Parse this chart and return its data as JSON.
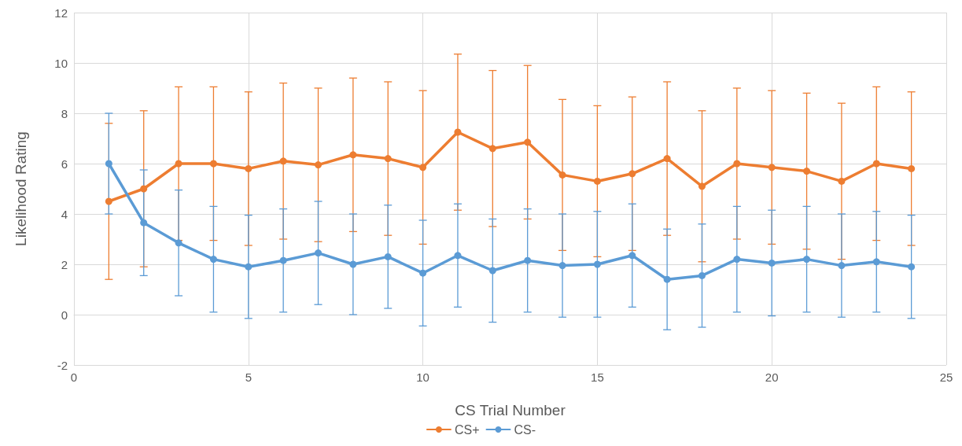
{
  "chart_data": {
    "type": "line",
    "xlabel": "CS Trial Number",
    "ylabel": "Likelihood Rating",
    "x": [
      1,
      2,
      3,
      4,
      5,
      6,
      7,
      8,
      9,
      10,
      11,
      12,
      13,
      14,
      15,
      16,
      17,
      18,
      19,
      20,
      21,
      22,
      23,
      24
    ],
    "xlim": [
      0,
      25
    ],
    "xticks": [
      0,
      5,
      10,
      15,
      20,
      25
    ],
    "ylim": [
      -2,
      12
    ],
    "yticks": [
      -2,
      0,
      2,
      4,
      6,
      8,
      10,
      12
    ],
    "grid": true,
    "legend": "bottom",
    "marker": "circle",
    "line_style": "solid",
    "series": [
      {
        "name": "CS+",
        "color": "#ed7d31",
        "values": [
          4.5,
          5.0,
          6.0,
          6.0,
          5.8,
          6.1,
          5.95,
          6.35,
          6.2,
          5.85,
          7.25,
          6.6,
          6.85,
          5.55,
          5.3,
          5.6,
          6.2,
          5.1,
          6.0,
          5.85,
          5.7,
          5.3,
          6.0,
          5.8
        ],
        "errors": [
          3.1,
          3.1,
          3.05,
          3.05,
          3.05,
          3.1,
          3.05,
          3.05,
          3.05,
          3.05,
          3.1,
          3.1,
          3.05,
          3.0,
          3.0,
          3.05,
          3.05,
          3.0,
          3.0,
          3.05,
          3.1,
          3.1,
          3.05,
          3.05
        ]
      },
      {
        "name": "CS-",
        "color": "#5b9bd5",
        "values": [
          6.0,
          3.65,
          2.85,
          2.2,
          1.9,
          2.15,
          2.45,
          2.0,
          2.3,
          1.65,
          2.35,
          1.75,
          2.15,
          1.95,
          2.0,
          2.35,
          1.4,
          1.55,
          2.2,
          2.05,
          2.2,
          1.95,
          2.1,
          1.9
        ],
        "errors": [
          2.0,
          2.1,
          2.1,
          2.1,
          2.05,
          2.05,
          2.05,
          2.0,
          2.05,
          2.1,
          2.05,
          2.05,
          2.05,
          2.05,
          2.1,
          2.05,
          2.0,
          2.05,
          2.1,
          2.1,
          2.1,
          2.05,
          2.0,
          2.05
        ]
      }
    ]
  }
}
